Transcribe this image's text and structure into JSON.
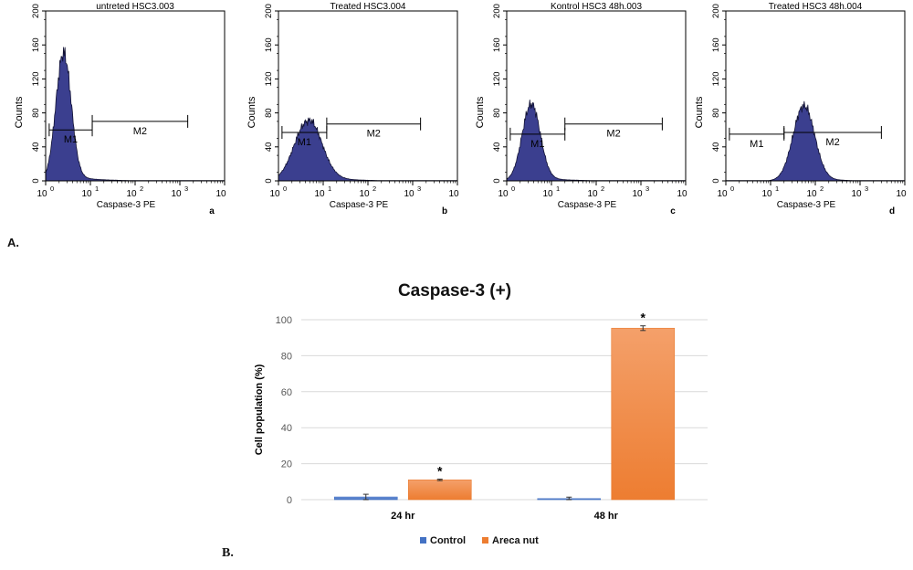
{
  "panel_a_label": "A.",
  "panel_b_label": "B.",
  "chart_data": [
    {
      "type": "histogram",
      "title": "untreted HSC3.003",
      "xlabel": "Caspase-3 PE",
      "ylabel": "Counts",
      "panel_letter": "a",
      "xscale": "log",
      "xlim": [
        1,
        10000
      ],
      "ylim": [
        0,
        200
      ],
      "yticks": [
        0,
        40,
        80,
        120,
        160,
        200
      ],
      "xtick_exponents": [
        "0",
        "1",
        "2",
        "3",
        "4"
      ],
      "peak_x": 2.5,
      "peak_count": 150,
      "spread": 0.17,
      "tail": 8,
      "markers": [
        {
          "name": "M1",
          "from": 1.2,
          "to": 11,
          "level": 60
        },
        {
          "name": "M2",
          "from": 11,
          "to": 1500,
          "level": 70
        }
      ]
    },
    {
      "type": "histogram",
      "title": "Treated HSC3.004",
      "xlabel": "Caspase-3 PE",
      "ylabel": "Counts",
      "panel_letter": "b",
      "xscale": "log",
      "xlim": [
        1,
        10000
      ],
      "ylim": [
        0,
        200
      ],
      "yticks": [
        0,
        40,
        80,
        120,
        160,
        200
      ],
      "xtick_exponents": [
        "0",
        "1",
        "2",
        "3",
        "4"
      ],
      "peak_x": 4.5,
      "peak_count": 70,
      "spread": 0.3,
      "tail": 10,
      "markers": [
        {
          "name": "M1",
          "from": 1.2,
          "to": 12,
          "level": 57
        },
        {
          "name": "M2",
          "from": 12,
          "to": 1500,
          "level": 67
        }
      ]
    },
    {
      "type": "histogram",
      "title": "Kontrol HSC3 48h.003",
      "xlabel": "Caspase-3 PE",
      "ylabel": "Counts",
      "panel_letter": "c",
      "xscale": "log",
      "xlim": [
        1,
        10000
      ],
      "ylim": [
        0,
        200
      ],
      "yticks": [
        0,
        40,
        80,
        120,
        160,
        200
      ],
      "xtick_exponents": [
        "0",
        "1",
        "2",
        "3",
        "4"
      ],
      "peak_x": 3.5,
      "peak_count": 90,
      "spread": 0.2,
      "tail": 6,
      "markers": [
        {
          "name": "M1",
          "from": 1.2,
          "to": 20,
          "level": 55
        },
        {
          "name": "M2",
          "from": 20,
          "to": 3000,
          "level": 67
        }
      ]
    },
    {
      "type": "histogram",
      "title": "Treated HSC3 48h.004",
      "xlabel": "Caspase-3 PE",
      "ylabel": "Counts",
      "panel_letter": "d",
      "xscale": "log",
      "xlim": [
        1,
        10000
      ],
      "ylim": [
        0,
        200
      ],
      "yticks": [
        0,
        40,
        80,
        120,
        160,
        200
      ],
      "xtick_exponents": [
        "0",
        "1",
        "2",
        "3",
        "4"
      ],
      "peak_x": 55,
      "peak_count": 88,
      "spread": 0.24,
      "tail": 4,
      "markers": [
        {
          "name": "M1",
          "from": 1.2,
          "to": 20,
          "level": 55
        },
        {
          "name": "M2",
          "from": 20,
          "to": 3000,
          "level": 57
        }
      ]
    },
    {
      "type": "bar",
      "title": "Caspase-3 (+)",
      "xlabel": "",
      "ylabel": "Cell population (%)",
      "categories": [
        "24 hr",
        "48 hr"
      ],
      "ylim": [
        0,
        100
      ],
      "yticks": [
        0,
        20,
        40,
        60,
        80,
        100
      ],
      "grid": true,
      "legend_position": "bottom",
      "series": [
        {
          "name": "Control",
          "values": [
            1.5,
            0.6
          ],
          "errors": [
            1.5,
            0.8
          ],
          "color": "#4472c4",
          "significant": [
            "",
            ""
          ]
        },
        {
          "name": "Areca nut",
          "values": [
            11,
            95.3
          ],
          "errors": [
            0.4,
            1.3
          ],
          "color": "#ed7d31",
          "significant": [
            "*",
            "*"
          ]
        }
      ]
    }
  ]
}
